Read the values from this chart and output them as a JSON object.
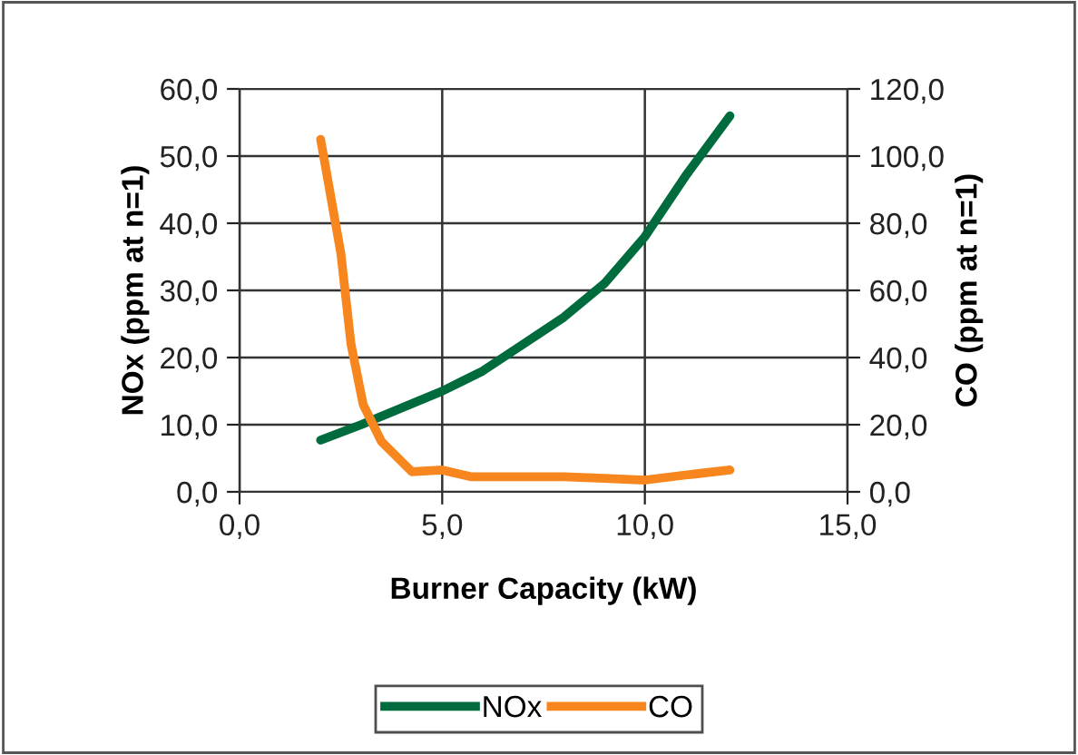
{
  "chart_data": {
    "type": "line",
    "xlabel": "Burner Capacity (kW)",
    "ylabel": "NOx (ppm at n=1)",
    "y2label": "CO (ppm at n=1)",
    "xlim": [
      0,
      15
    ],
    "xticks": [
      {
        "value": 0,
        "label": "0,0"
      },
      {
        "value": 5,
        "label": "5,0"
      },
      {
        "value": 10,
        "label": "10,0"
      },
      {
        "value": 15,
        "label": "15,0"
      }
    ],
    "ylim": [
      0,
      60
    ],
    "yticks": [
      {
        "value": 0,
        "label": "0,0"
      },
      {
        "value": 10,
        "label": "10,0"
      },
      {
        "value": 20,
        "label": "20,0"
      },
      {
        "value": 30,
        "label": "30,0"
      },
      {
        "value": 40,
        "label": "40,0"
      },
      {
        "value": 50,
        "label": "50,0"
      },
      {
        "value": 60,
        "label": "60,0"
      }
    ],
    "y2lim": [
      0,
      120
    ],
    "y2ticks": [
      {
        "value": 0,
        "label": "0,0"
      },
      {
        "value": 20,
        "label": "20,0"
      },
      {
        "value": 40,
        "label": "40,0"
      },
      {
        "value": 60,
        "label": "60,0"
      },
      {
        "value": 80,
        "label": "80,0"
      },
      {
        "value": 100,
        "label": "100,0"
      },
      {
        "value": 120,
        "label": "120,0"
      }
    ],
    "grid": true,
    "legend": "bottom",
    "marker": "none",
    "line_style": "solid",
    "series": [
      {
        "name": "NOx",
        "color": "#006b3c",
        "x": [
          2,
          3,
          4,
          5,
          6,
          7,
          8,
          9,
          10,
          11,
          12.1
        ],
        "values": [
          7.7,
          10,
          12.5,
          15,
          18,
          22,
          26,
          31,
          38,
          47,
          56
        ]
      },
      {
        "name": "CO",
        "color": "#f7861e",
        "axis": "y2",
        "x": [
          2,
          2.5,
          2.75,
          3.05,
          3.5,
          4.25,
          5,
          5.7,
          7,
          8,
          9,
          10,
          11,
          12.1
        ],
        "values": [
          105,
          71,
          44,
          26,
          15,
          6,
          6.5,
          4.5,
          4.5,
          4.5,
          4,
          3.5,
          5,
          6.5
        ]
      }
    ]
  }
}
